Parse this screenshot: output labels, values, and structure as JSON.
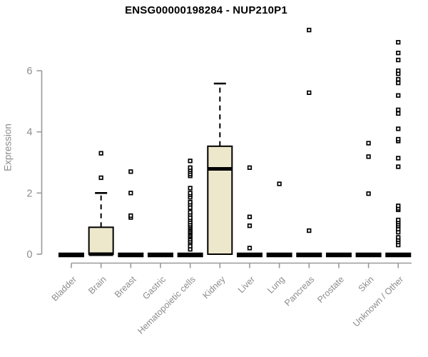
{
  "header": {
    "title": "ENSG00000198284 - NUP210P1"
  },
  "chart_data": {
    "type": "boxplot",
    "title": "ENSG00000198284 - NUP210P1",
    "xlabel": "",
    "ylabel": "Expression",
    "yticks": [
      0,
      2,
      4,
      6
    ],
    "ylim": [
      0,
      7.5
    ],
    "grid": false,
    "legend": "none",
    "colors": {
      "box_fill": "#EDE7CC",
      "box_stroke": "#000000",
      "median": "#000000",
      "outlier_stroke": "#000000",
      "outlier_fill": "#FFFFFF",
      "axis": "#9A9A9A",
      "tick_label": "#8C8C8C",
      "title": "#000000"
    },
    "categories": [
      "Bladder",
      "Brain",
      "Breast",
      "Gastric",
      "Hematopoietic cells",
      "Kidney",
      "Liver",
      "Lung",
      "Pancreas",
      "Prostate",
      "Skin",
      "Unknown / Other"
    ],
    "series": [
      {
        "category": "Bladder",
        "min": 0,
        "q1": 0,
        "median": 0,
        "q3": 0,
        "max": 0,
        "outliers": []
      },
      {
        "category": "Brain",
        "min": 0,
        "q1": 0,
        "median": 0,
        "q3": 0.88,
        "max": 2.0,
        "outliers": [
          2.5,
          3.3
        ]
      },
      {
        "category": "Breast",
        "min": 0,
        "q1": 0,
        "median": 0,
        "q3": 0,
        "max": 0,
        "outliers": [
          1.2,
          1.26,
          2.0,
          2.7
        ]
      },
      {
        "category": "Gastric",
        "min": 0,
        "q1": 0,
        "median": 0,
        "q3": 0,
        "max": 0,
        "outliers": []
      },
      {
        "category": "Hematopoietic cells",
        "min": 0,
        "q1": 0,
        "median": 0,
        "q3": 0,
        "max": 0,
        "outliers": [
          0.16,
          0.26,
          0.37,
          0.42,
          0.49,
          0.56,
          0.6,
          0.65,
          0.7,
          0.74,
          0.79,
          0.84,
          0.88,
          0.93,
          0.98,
          1.05,
          1.13,
          1.19,
          1.3,
          1.37,
          1.52,
          1.63,
          1.7,
          1.86,
          1.94,
          2.0,
          2.16,
          2.56,
          2.62,
          2.7,
          2.76,
          2.83,
          3.05
        ]
      },
      {
        "category": "Kidney",
        "min": 0,
        "q1": 0,
        "median": 2.79,
        "q3": 3.53,
        "max": 5.58,
        "outliers": []
      },
      {
        "category": "Liver",
        "min": 0,
        "q1": 0,
        "median": 0,
        "q3": 0,
        "max": 0,
        "outliers": [
          0.2,
          0.93,
          1.22,
          2.83
        ]
      },
      {
        "category": "Lung",
        "min": 0,
        "q1": 0,
        "median": 0,
        "q3": 0,
        "max": 0,
        "outliers": [
          2.3
        ]
      },
      {
        "category": "Pancreas",
        "min": 0,
        "q1": 0,
        "median": 0,
        "q3": 0,
        "max": 0,
        "outliers": [
          0.77,
          5.28,
          7.33
        ]
      },
      {
        "category": "Prostate",
        "min": 0,
        "q1": 0,
        "median": 0,
        "q3": 0,
        "max": 0,
        "outliers": []
      },
      {
        "category": "Skin",
        "min": 0,
        "q1": 0,
        "median": 0,
        "q3": 0,
        "max": 0,
        "outliers": [
          1.98,
          3.19,
          3.63
        ]
      },
      {
        "category": "Unknown / Other",
        "min": 0,
        "q1": 0,
        "median": 0,
        "q3": 0,
        "max": 0,
        "outliers": [
          0.3,
          0.4,
          0.47,
          0.55,
          0.72,
          0.82,
          0.92,
          0.98,
          1.05,
          1.12,
          1.45,
          1.5,
          1.58,
          2.86,
          3.14,
          3.7,
          3.76,
          4.1,
          4.6,
          4.72,
          5.19,
          5.6,
          5.72,
          5.9,
          6.0,
          6.35,
          6.58,
          6.93
        ]
      }
    ]
  }
}
